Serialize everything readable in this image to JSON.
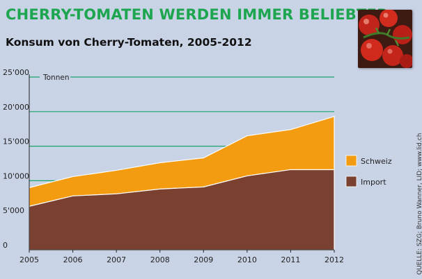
{
  "header": {
    "title": "CHERRY-TOMATEN WERDEN IMMER BELIEBTER",
    "subtitle": "Konsum von Cherry-Tomaten, 2005-2012"
  },
  "source": "QUELLE: SZG; Bruno Wanner, LID; www.lid.ch",
  "photo_icon": "cherry-tomatoes-photo",
  "colors": {
    "background": "#c9d3e6",
    "title": "#1ea550",
    "gridline": "#1aa36b",
    "schweiz": "#f39c12",
    "import": "#7a4030"
  },
  "chart_data": {
    "type": "area",
    "stacked": true,
    "x": [
      "2005",
      "2006",
      "2007",
      "2008",
      "2009",
      "2010",
      "2011",
      "2012"
    ],
    "unit_label": "Tonnen",
    "ylim": [
      0,
      25000
    ],
    "y_ticks": [
      "0",
      "5'000",
      "10'000",
      "15'000",
      "20'000",
      "25'000"
    ],
    "grid": true,
    "legend_position": "right",
    "series": [
      {
        "name": "Import",
        "values": [
          6300,
          7800,
          8100,
          8800,
          9100,
          10700,
          11600,
          11600
        ]
      },
      {
        "name": "Schweiz",
        "values": [
          2700,
          2800,
          3400,
          3800,
          4200,
          5800,
          5800,
          7700
        ]
      }
    ]
  }
}
